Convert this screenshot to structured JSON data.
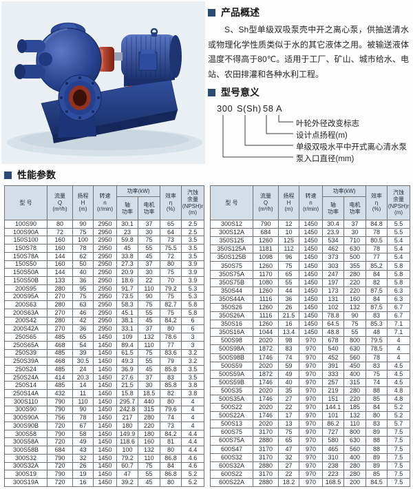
{
  "overview": {
    "title": "产品概述",
    "body": "S、Sh型单级双吸泵壳中开之离心泵，供抽送清水或物理化学性质类似于水的其它液体之用。被输送液体温度不得高于80℃。适用于工厂、矿山、城市给水、电站、农田排灌和各种水利工程。"
  },
  "model_meaning": {
    "title": "型号意义",
    "code_parts": [
      "300",
      "S(Sh)",
      "58",
      "A"
    ],
    "labels": [
      "叶轮外径改变标志",
      "设计点扬程(m)",
      "单级双吸水平中开式离心清水泵",
      "泵入口直径(mm)"
    ]
  },
  "performance": {
    "title": "性能参数",
    "headers": {
      "col_model": "型  号",
      "col_flow": "流量\nQ\n(m³/h)",
      "col_head": "扬程\nH\n(m)",
      "col_speed": "转速\nn\n(r/min)",
      "col_power": "功率(kW)",
      "col_shaft": "轴\n功率",
      "col_motor": "电机\n功率",
      "col_eff": "效率\nη\n(%)",
      "col_npsh": "汽蚀\n余量\n(NPSH)r\n(m)"
    },
    "left_rows": [
      [
        "100S90",
        "80",
        "90",
        "2950",
        "30.1",
        "37",
        "65",
        "2.5"
      ],
      [
        "100S90A",
        "72",
        "75",
        "2950",
        "23",
        "30",
        "64",
        "2.5"
      ],
      [
        "150S100",
        "160",
        "100",
        "2950",
        "59.8",
        "75",
        "73",
        "3.5"
      ],
      [
        "150S78",
        "160",
        "78",
        "2950",
        "45",
        "55",
        "75.5",
        "3.5"
      ],
      [
        "150S78A",
        "144",
        "62",
        "2950",
        "33.8",
        "45",
        "72",
        "3.5"
      ],
      [
        "150S50",
        "160",
        "50",
        "2950",
        "27.3",
        "37",
        "80",
        "3.9"
      ],
      [
        "150S50A",
        "144",
        "40",
        "2950",
        "20.9",
        "30",
        "75",
        "3.9"
      ],
      [
        "150S50B",
        "133",
        "36",
        "2950",
        "18.6",
        "22",
        "70",
        "3.9"
      ],
      [
        "200S95",
        "280",
        "95",
        "2950",
        "91.7",
        "110",
        "79.2",
        "5.3"
      ],
      [
        "200S95A",
        "270",
        "75",
        "2950",
        "73.5",
        "90",
        "75",
        "5.3"
      ],
      [
        "200S63",
        "280",
        "63",
        "2950",
        "58.3",
        "75",
        "82.7",
        "5.8"
      ],
      [
        "200S63A",
        "270",
        "46",
        "2950",
        "45.1",
        "55",
        "75",
        "5.8"
      ],
      [
        "200S42",
        "280",
        "42",
        "2950",
        "38.1",
        "45",
        "84.2",
        "6"
      ],
      [
        "200S42A",
        "270",
        "36",
        "2950",
        "33.1",
        "37",
        "80",
        "6"
      ],
      [
        "250S65",
        "485",
        "65",
        "1450",
        "109",
        "132",
        "78.6",
        "3"
      ],
      [
        "250S65A",
        "468",
        "54",
        "1450",
        "89.4",
        "110",
        "77",
        "3"
      ],
      [
        "250S39",
        "485",
        "39",
        "1450",
        "61.5",
        "75",
        "83.6",
        "3.2"
      ],
      [
        "250S39A",
        "468",
        "30.5",
        "1450",
        "49.3",
        "55",
        "79",
        "3.2"
      ],
      [
        "250S24",
        "485",
        "24",
        "1450",
        "36.9",
        "45",
        "85.8",
        "3.5"
      ],
      [
        "250S24A",
        "414",
        "20.3",
        "1450",
        "27.6",
        "37",
        "83",
        "3.5"
      ],
      [
        "250S14",
        "485",
        "14",
        "1450",
        "21.5",
        "30",
        "85.8",
        "3.8"
      ],
      [
        "250S14A",
        "432",
        "11",
        "1450",
        "15.8",
        "18.5",
        "82",
        "3.8"
      ],
      [
        "300S110",
        "790",
        "110",
        "1450",
        "295.7",
        "440",
        "80",
        "4"
      ],
      [
        "300S90",
        "790",
        "90",
        "1450",
        "242.8",
        "315",
        "79.6",
        "4"
      ],
      [
        "300S90A",
        "756",
        "78",
        "1450",
        "217",
        "280",
        "74",
        "4"
      ],
      [
        "300S90B",
        "720",
        "67",
        "1450",
        "180",
        "220",
        "73",
        "4"
      ],
      [
        "300S58",
        "790",
        "58",
        "1450",
        "149.9",
        "180",
        "84.2",
        "4.4"
      ],
      [
        "300S58A",
        "720",
        "49",
        "1450",
        "118.6",
        "160",
        "81",
        "4.4"
      ],
      [
        "300S58B",
        "684",
        "43",
        "1450",
        "100",
        "132",
        "80",
        "4.4"
      ],
      [
        "300S32",
        "790",
        "32",
        "1450",
        "79.2",
        "110",
        "86.8",
        "4.6"
      ],
      [
        "300S32A",
        "720",
        "26",
        "1450",
        "60.7",
        "75",
        "84",
        "4.6"
      ],
      [
        "300S19",
        "790",
        "19",
        "1450",
        "47",
        "55",
        "86.8",
        "5.2"
      ],
      [
        "300S19A",
        "720",
        "16",
        "1450",
        "39.2",
        "45",
        "80",
        "5.2"
      ]
    ],
    "right_rows": [
      [
        "300S12",
        "790",
        "12",
        "1450",
        "30.4",
        "37",
        "84.8",
        "5.5"
      ],
      [
        "300S12A",
        "684",
        "10",
        "1450",
        "23.9",
        "30",
        "78",
        "5.5"
      ],
      [
        "350S125",
        "1260",
        "125",
        "1450",
        "534",
        "710",
        "80.5",
        "5.4"
      ],
      [
        "350S125A",
        "1181",
        "112",
        "1450",
        "462",
        "630",
        "78",
        "5.4"
      ],
      [
        "350S125B",
        "1098",
        "96",
        "1450",
        "373",
        "500",
        "77",
        "5.4"
      ],
      [
        "350S75",
        "1260",
        "75",
        "1450",
        "303",
        "355",
        "85.2",
        "5.8"
      ],
      [
        "350S75A",
        "1170",
        "65",
        "1450",
        "247",
        "280",
        "84",
        "5.8"
      ],
      [
        "350S75B",
        "1080",
        "55",
        "1450",
        "197",
        "220",
        "82",
        "5.8"
      ],
      [
        "350S44",
        "1260",
        "44",
        "1450",
        "173",
        "220",
        "87.5",
        "6.3"
      ],
      [
        "350S44A",
        "1116",
        "36",
        "1450",
        "131",
        "160",
        "84",
        "6.3"
      ],
      [
        "350S26",
        "1260",
        "26",
        "1450",
        "102",
        "132",
        "87.5",
        "6.7"
      ],
      [
        "350S26A",
        "1116",
        "21.5",
        "1450",
        "78.8",
        "90",
        "83",
        "6.7"
      ],
      [
        "350S16",
        "1260",
        "16",
        "1450",
        "64.5",
        "75",
        "85.3",
        "7.1"
      ],
      [
        "350S16A",
        "1044",
        "13.4",
        "1450",
        "48.8",
        "55",
        "48",
        "7.1"
      ],
      [
        "500S98",
        "2020",
        "98",
        "970",
        "678",
        "800",
        "79.5",
        "4"
      ],
      [
        "500S98A",
        "1872",
        "83",
        "970",
        "540",
        "630",
        "78.5",
        "4"
      ],
      [
        "500S98B",
        "1746",
        "74",
        "970",
        "452",
        "560",
        "78",
        "4"
      ],
      [
        "500S59",
        "2020",
        "59",
        "970",
        "391",
        "450",
        "83",
        "4.5"
      ],
      [
        "500S59A",
        "1872",
        "49",
        "970",
        "333",
        "400",
        "75",
        "4.5"
      ],
      [
        "500S59B",
        "1746",
        "40",
        "970",
        "257",
        "315",
        "74",
        "4.5"
      ],
      [
        "500S35",
        "2020",
        "35",
        "970",
        "219",
        "280",
        "88",
        "4.8"
      ],
      [
        "500S35A",
        "1746",
        "27",
        "970",
        "151",
        "220",
        "85",
        "4.8"
      ],
      [
        "500S22",
        "2020",
        "22",
        "970",
        "144.1",
        "185",
        "84",
        "5.2"
      ],
      [
        "500S22A",
        "1746",
        "17",
        "970",
        "101",
        "132",
        "80",
        "5.2"
      ],
      [
        "500S13",
        "2020",
        "13",
        "970",
        "86.2",
        "110",
        "83",
        "5.7"
      ],
      [
        "600S75",
        "3170",
        "75",
        "970",
        "727",
        "800",
        "89",
        "7.5"
      ],
      [
        "600S75A",
        "2880",
        "65",
        "970",
        "580",
        "630",
        "88",
        "7.5"
      ],
      [
        "600S47",
        "3170",
        "47",
        "970",
        "465",
        "560",
        "88",
        "7.5"
      ],
      [
        "600S32",
        "3170",
        "32",
        "970",
        "310",
        "400",
        "89",
        "7.5"
      ],
      [
        "600S32A",
        "2880",
        "27",
        "970",
        "238",
        "280",
        "89",
        "7.5"
      ],
      [
        "600S22",
        "3170",
        "22",
        "970",
        "223",
        "280",
        "85",
        "7.5"
      ],
      [
        "600S22A",
        "2880",
        "18.2",
        "970",
        "168.5",
        "200",
        "84.5",
        "7.5"
      ]
    ],
    "colors": {
      "header_bg": "#d3dfe8",
      "section_bullet": "#2b4a74",
      "pump_blue": "#2c4896",
      "coupling_red": "#b03226"
    }
  }
}
